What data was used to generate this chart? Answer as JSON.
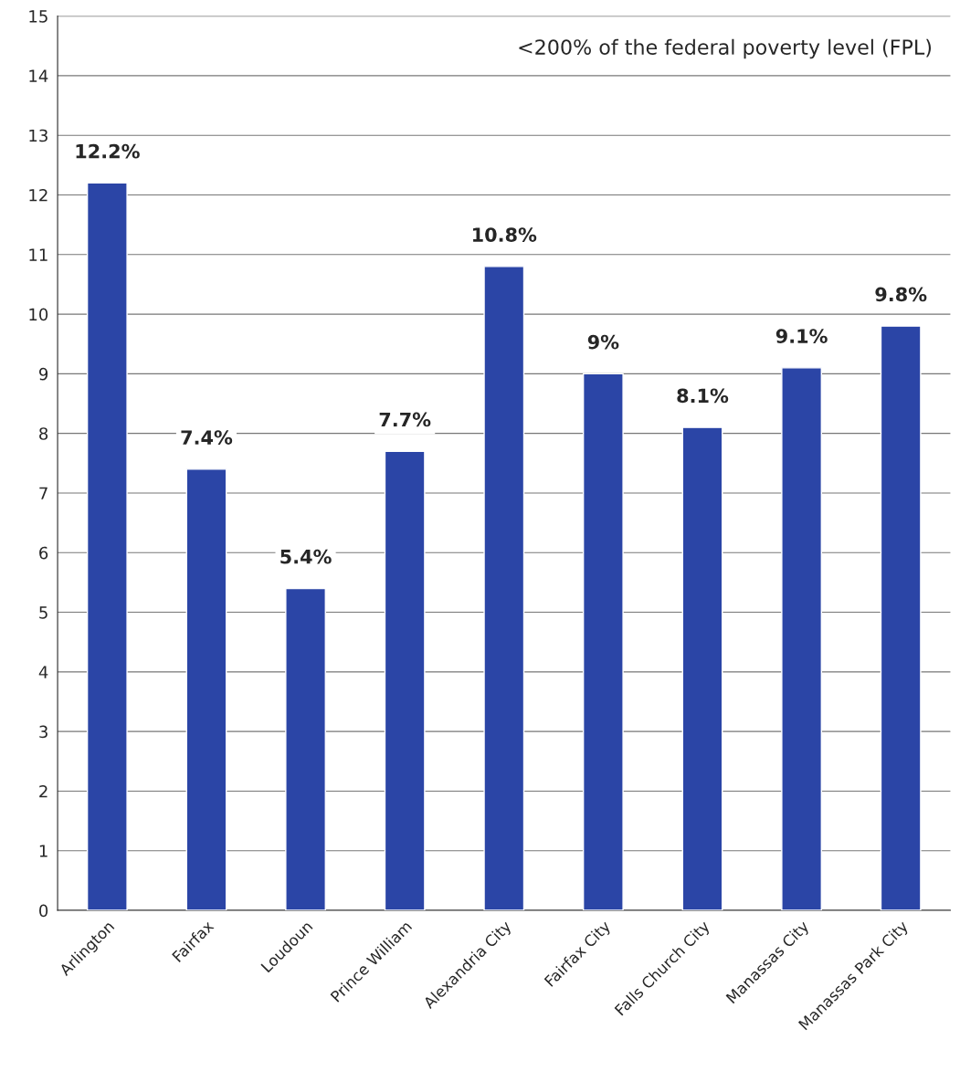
{
  "chart_data": {
    "type": "bar",
    "categories": [
      "Arlington",
      "Fairfax",
      "Loudoun",
      "Prince William",
      "Alexandria City",
      "Fairfax City",
      "Falls Church City",
      "Manassas City",
      "Manassas Park City"
    ],
    "values": [
      12.2,
      7.4,
      5.4,
      7.7,
      10.8,
      9.0,
      8.1,
      9.1,
      9.8
    ],
    "value_labels": [
      "12.2%",
      "7.4%",
      "5.4%",
      "7.7%",
      "10.8%",
      "9%",
      "8.1%",
      "9.1%",
      "9.8%"
    ],
    "color": "#2b45a6",
    "ylim": [
      0,
      15
    ],
    "yticks": [
      0,
      1,
      2,
      3,
      4,
      5,
      6,
      7,
      8,
      9,
      10,
      11,
      12,
      13,
      14,
      15
    ],
    "grid": "y",
    "annotations": [
      "<200% of the federal poverty level (FPL)"
    ]
  }
}
